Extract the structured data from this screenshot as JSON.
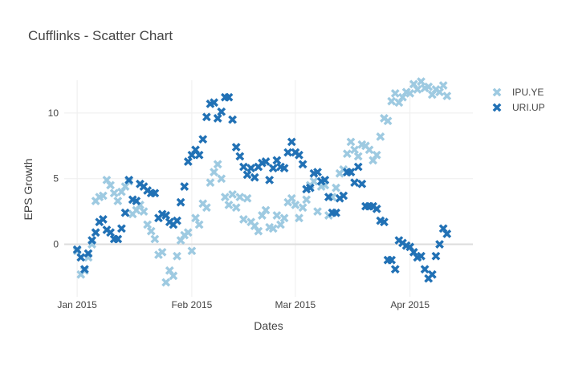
{
  "chart_data": {
    "type": "scatter",
    "title": "Cufflinks - Scatter Chart",
    "xlabel": "Dates",
    "ylabel": "EPS Growth",
    "xlim_days": [
      -3.5,
      107
    ],
    "ylim": [
      -4,
      12.5
    ],
    "x_ticks": [
      {
        "day": 0,
        "label": "Jan 2015"
      },
      {
        "day": 31,
        "label": "Feb 2015"
      },
      {
        "day": 59,
        "label": "Mar 2015"
      },
      {
        "day": 90,
        "label": "Apr 2015"
      }
    ],
    "y_ticks": [
      {
        "value": 0,
        "label": "0"
      },
      {
        "value": 5,
        "label": "5"
      },
      {
        "value": 10,
        "label": "10"
      }
    ],
    "marker": "x",
    "legend_position": "top-right",
    "series": [
      {
        "name": "IPU.YE",
        "color": "#9ecae1",
        "day": [
          0,
          1,
          2,
          3,
          4,
          5,
          6,
          7,
          8,
          9,
          10,
          11,
          12,
          13,
          14,
          15,
          16,
          17,
          18,
          19,
          20,
          21,
          22,
          23,
          24,
          25,
          26,
          27,
          28,
          29,
          30,
          31,
          32,
          33,
          34,
          35,
          36,
          37,
          38,
          39,
          40,
          41,
          42,
          43,
          44,
          45,
          46,
          47,
          48,
          49,
          50,
          51,
          52,
          53,
          54,
          55,
          56,
          57,
          58,
          59,
          60,
          61,
          62,
          63,
          64,
          65,
          66,
          67,
          68,
          69,
          70,
          71,
          72,
          73,
          74,
          75,
          76,
          77,
          78,
          79,
          80,
          81,
          82,
          83,
          84,
          85,
          86,
          87,
          88,
          89,
          90,
          91,
          92,
          93,
          94,
          95,
          96,
          97,
          98,
          99,
          100
        ],
        "values": [
          -0.5,
          -2.3,
          -2.0,
          -1.0,
          0.0,
          3.3,
          3.6,
          3.7,
          4.9,
          4.5,
          3.9,
          3.3,
          4.0,
          4.4,
          4.8,
          2.3,
          2.6,
          3.0,
          2.5,
          1.5,
          1.0,
          0.4,
          -0.8,
          -0.6,
          -2.9,
          -2.0,
          -2.4,
          -0.9,
          0.3,
          0.7,
          0.9,
          -0.5,
          2.0,
          1.5,
          3.1,
          2.8,
          4.7,
          5.5,
          6.1,
          5.0,
          3.6,
          3.0,
          3.8,
          2.8,
          3.6,
          1.9,
          3.5,
          1.7,
          1.4,
          1.0,
          2.2,
          2.6,
          1.3,
          1.2,
          2.2,
          1.5,
          2.0,
          3.2,
          3.5,
          3.0,
          2.0,
          2.8,
          3.4,
          4.5,
          4.8,
          2.5,
          4.4,
          4.5,
          2.2,
          3.6,
          4.3,
          5.4,
          5.7,
          6.9,
          7.8,
          7.2,
          6.7,
          7.6,
          7.5,
          7.2,
          6.4,
          6.8,
          8.2,
          9.6,
          9.4,
          10.9,
          11.5,
          10.8,
          11.2,
          11.6,
          11.5,
          12.2,
          11.8,
          12.4,
          11.9,
          12.0,
          11.4,
          11.8,
          11.6,
          12.1,
          11.3
        ]
      },
      {
        "name": "URI.UP",
        "color": "#2171b5",
        "day": [
          0,
          1,
          2,
          3,
          4,
          5,
          6,
          7,
          8,
          9,
          10,
          11,
          12,
          13,
          14,
          15,
          16,
          17,
          18,
          19,
          20,
          21,
          22,
          23,
          24,
          25,
          26,
          27,
          28,
          29,
          30,
          31,
          32,
          33,
          34,
          35,
          36,
          37,
          38,
          39,
          40,
          41,
          42,
          43,
          44,
          45,
          46,
          47,
          48,
          49,
          50,
          51,
          52,
          53,
          54,
          55,
          56,
          57,
          58,
          59,
          60,
          61,
          62,
          63,
          64,
          65,
          66,
          67,
          68,
          69,
          70,
          71,
          72,
          73,
          74,
          75,
          76,
          77,
          78,
          79,
          80,
          81,
          82,
          83,
          84,
          85,
          86,
          87,
          88,
          89,
          90,
          91,
          92,
          93,
          94,
          95,
          96,
          97,
          98,
          99,
          100
        ],
        "values": [
          -0.4,
          -1.0,
          -1.9,
          -0.7,
          0.3,
          0.9,
          1.7,
          1.9,
          1.1,
          0.9,
          0.4,
          0.4,
          1.2,
          2.4,
          4.9,
          3.4,
          3.3,
          4.6,
          4.4,
          4.1,
          3.9,
          3.9,
          2.0,
          2.3,
          2.2,
          1.7,
          1.5,
          1.8,
          3.2,
          4.4,
          6.3,
          6.8,
          7.2,
          6.8,
          8.0,
          9.7,
          10.7,
          10.8,
          9.6,
          10.1,
          11.2,
          11.2,
          9.5,
          7.4,
          6.7,
          5.9,
          5.3,
          5.8,
          5.1,
          5.9,
          6.2,
          6.3,
          4.9,
          5.8,
          6.4,
          5.9,
          5.8,
          7.0,
          7.8,
          7.0,
          6.8,
          6.1,
          4.2,
          4.3,
          5.4,
          5.5,
          4.8,
          4.9,
          3.6,
          2.4,
          2.4,
          3.5,
          3.7,
          5.5,
          5.5,
          4.7,
          5.9,
          4.6,
          2.9,
          2.9,
          2.9,
          2.7,
          1.8,
          1.7,
          -1.2,
          -1.2,
          -1.9,
          0.3,
          0.1,
          -0.1,
          -0.2,
          -0.6,
          -1.0,
          -0.9,
          -1.9,
          -2.6,
          -2.3,
          -0.9,
          0.0,
          1.2,
          0.8
        ]
      }
    ]
  }
}
